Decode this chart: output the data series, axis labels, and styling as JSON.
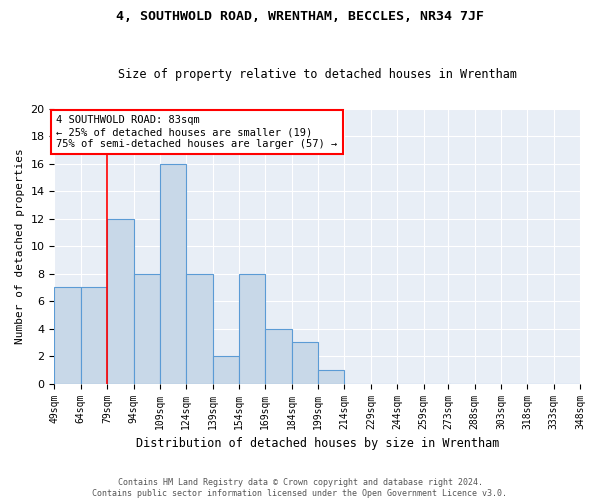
{
  "title1": "4, SOUTHWOLD ROAD, WRENTHAM, BECCLES, NR34 7JF",
  "title2": "Size of property relative to detached houses in Wrentham",
  "xlabel": "Distribution of detached houses by size in Wrentham",
  "ylabel": "Number of detached properties",
  "bin_edges": [
    49,
    64,
    79,
    94,
    109,
    124,
    139,
    154,
    169,
    184,
    199,
    214,
    229,
    244,
    259,
    273,
    288,
    303,
    318,
    333,
    348
  ],
  "bin_labels": [
    "49sqm",
    "64sqm",
    "79sqm",
    "94sqm",
    "109sqm",
    "124sqm",
    "139sqm",
    "154sqm",
    "169sqm",
    "184sqm",
    "199sqm",
    "214sqm",
    "229sqm",
    "244sqm",
    "259sqm",
    "273sqm",
    "288sqm",
    "303sqm",
    "318sqm",
    "333sqm",
    "348sqm"
  ],
  "counts": [
    7,
    7,
    12,
    8,
    16,
    8,
    2,
    8,
    4,
    3,
    1,
    0,
    0,
    0,
    0,
    0,
    0,
    0,
    0,
    0
  ],
  "bar_color": "#c8d8e8",
  "bar_edge_color": "#5b9bd5",
  "vline_x": 79,
  "vline_color": "red",
  "annotation_text": "4 SOUTHWOLD ROAD: 83sqm\n← 25% of detached houses are smaller (19)\n75% of semi-detached houses are larger (57) →",
  "annotation_box_color": "white",
  "annotation_box_edge": "red",
  "ylim": [
    0,
    20
  ],
  "yticks": [
    0,
    2,
    4,
    6,
    8,
    10,
    12,
    14,
    16,
    18,
    20
  ],
  "footnote": "Contains HM Land Registry data © Crown copyright and database right 2024.\nContains public sector information licensed under the Open Government Licence v3.0.",
  "bg_color": "#e8eef6",
  "grid_color": "white",
  "title1_fontsize": 9.5,
  "title2_fontsize": 8.5,
  "ylabel_fontsize": 8,
  "xlabel_fontsize": 8.5,
  "tick_fontsize": 7,
  "annot_fontsize": 7.5,
  "footnote_fontsize": 6.0
}
